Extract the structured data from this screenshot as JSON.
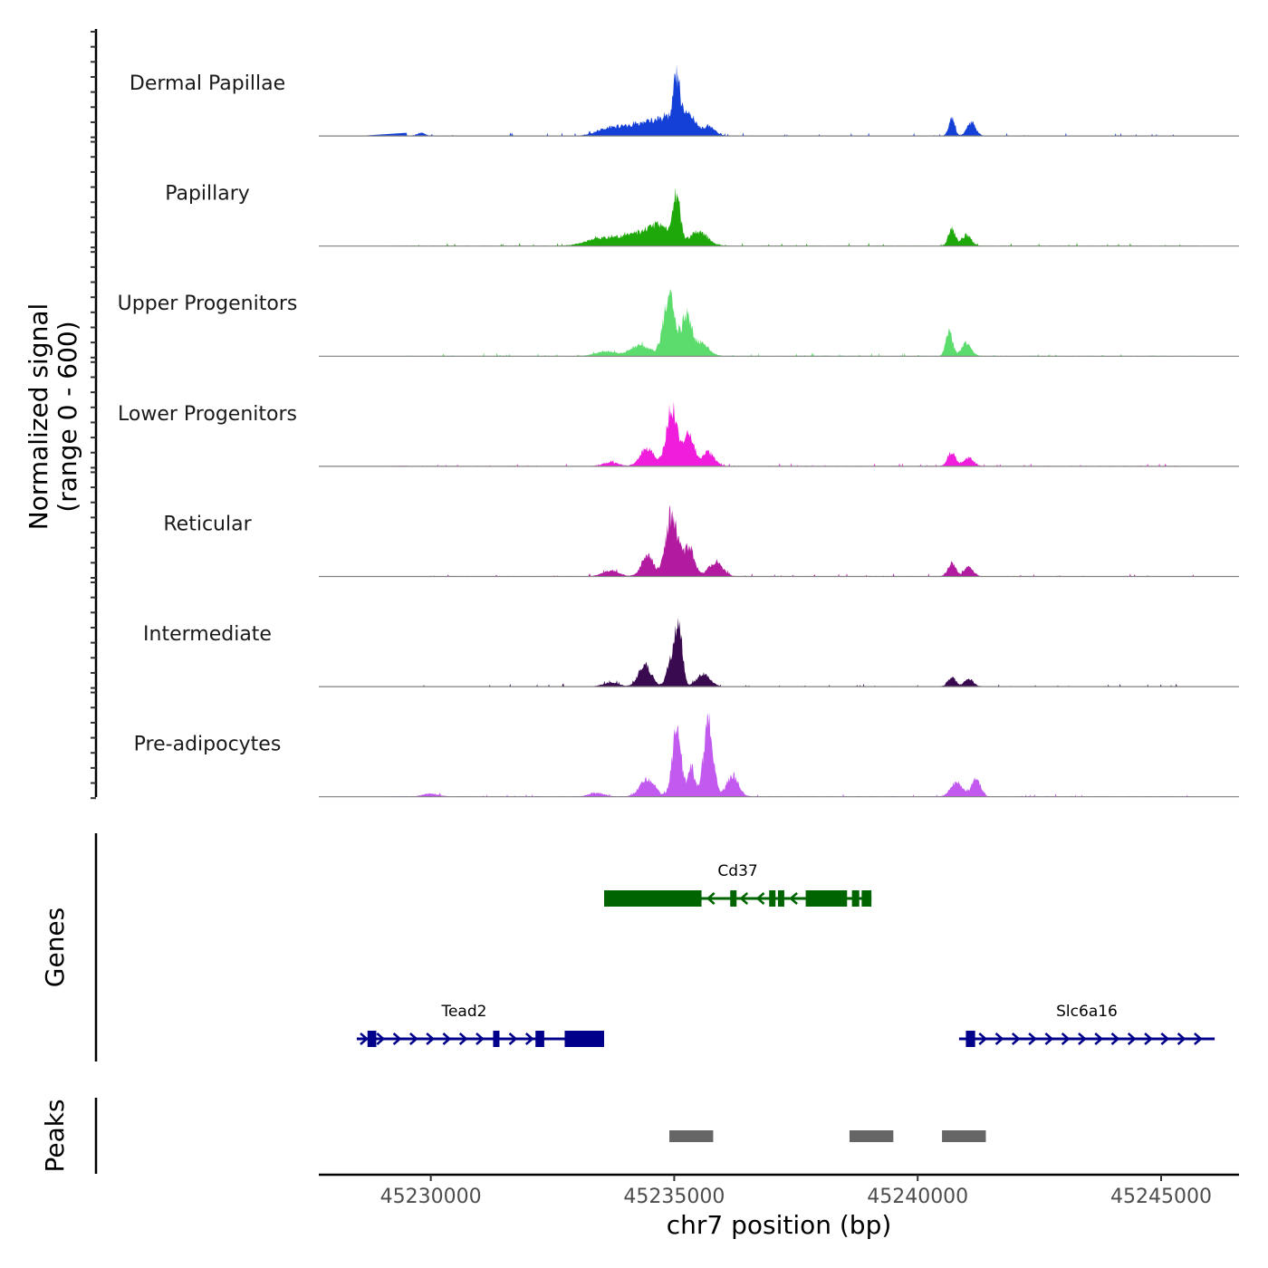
{
  "chart_data": {
    "type": "area",
    "title": "",
    "xlabel": "chr7 position (bp)",
    "ylabel_line1": "Normalized signal",
    "ylabel_line2": "(range 0 - 600)",
    "ylim": [
      0,
      600
    ],
    "xlim": [
      45227700,
      45246600
    ],
    "x_ticks": [
      45230000,
      45235000,
      45240000,
      45245000
    ],
    "x_tick_labels": [
      "45230000",
      "45235000",
      "45240000",
      "45245000"
    ],
    "series": [
      {
        "name": "Dermal Papillae",
        "color": "#1440d8",
        "peaks": [
          [
            45229800,
            30,
            80
          ],
          [
            45233600,
            60,
            220
          ],
          [
            45234000,
            80,
            250
          ],
          [
            45234500,
            130,
            250
          ],
          [
            45234900,
            140,
            200
          ],
          [
            45235050,
            480,
            70
          ],
          [
            45235300,
            220,
            130
          ],
          [
            45235700,
            100,
            130
          ],
          [
            45240700,
            190,
            60
          ],
          [
            45241100,
            130,
            90
          ]
        ]
      },
      {
        "name": "Papillary",
        "color": "#1fa80a",
        "peaks": [
          [
            45233500,
            80,
            300
          ],
          [
            45234200,
            110,
            300
          ],
          [
            45234700,
            200,
            220
          ],
          [
            45235050,
            490,
            75
          ],
          [
            45235500,
            150,
            180
          ],
          [
            45240700,
            180,
            70
          ],
          [
            45241000,
            110,
            100
          ]
        ]
      },
      {
        "name": "Upper Progenitors",
        "color": "#5cdc6c",
        "peaks": [
          [
            45233600,
            50,
            200
          ],
          [
            45234300,
            110,
            200
          ],
          [
            45234900,
            600,
            120
          ],
          [
            45235250,
            400,
            100
          ],
          [
            45235550,
            140,
            150
          ],
          [
            45240650,
            250,
            70
          ],
          [
            45241000,
            130,
            100
          ]
        ]
      },
      {
        "name": "Lower Progenitors",
        "color": "#f01edc",
        "peaks": [
          [
            45233700,
            40,
            150
          ],
          [
            45234450,
            200,
            140
          ],
          [
            45234950,
            600,
            110
          ],
          [
            45235300,
            350,
            110
          ],
          [
            45235700,
            150,
            120
          ],
          [
            45240700,
            150,
            80
          ],
          [
            45241050,
            90,
            100
          ]
        ]
      },
      {
        "name": "Reticular",
        "color": "#b21aa0",
        "peaks": [
          [
            45233700,
            60,
            160
          ],
          [
            45234450,
            220,
            120
          ],
          [
            45234950,
            660,
            120
          ],
          [
            45235300,
            300,
            110
          ],
          [
            45235850,
            150,
            140
          ],
          [
            45240700,
            140,
            80
          ],
          [
            45241050,
            100,
            90
          ]
        ]
      },
      {
        "name": "Intermediate",
        "color": "#3a0a50",
        "peaks": [
          [
            45233700,
            40,
            150
          ],
          [
            45234400,
            220,
            130
          ],
          [
            45234950,
            300,
            90
          ],
          [
            45235100,
            620,
            70
          ],
          [
            45235600,
            130,
            140
          ],
          [
            45240700,
            100,
            80
          ],
          [
            45241050,
            80,
            90
          ]
        ]
      },
      {
        "name": "Pre-adipocytes",
        "color": "#c25af0",
        "peaks": [
          [
            45230000,
            30,
            150
          ],
          [
            45233400,
            40,
            150
          ],
          [
            45234450,
            190,
            150
          ],
          [
            45235050,
            740,
            90
          ],
          [
            45235350,
            300,
            70
          ],
          [
            45235700,
            780,
            100
          ],
          [
            45236200,
            220,
            120
          ],
          [
            45240800,
            150,
            120
          ],
          [
            45241200,
            190,
            90
          ]
        ]
      }
    ],
    "genes": [
      {
        "name": "Cd37",
        "strand": "-",
        "start": 45233560,
        "end": 45239050,
        "color": "#006400",
        "exons": [
          [
            45233560,
            45235560
          ],
          [
            45236150,
            45236260
          ],
          [
            45236950,
            45237060
          ],
          [
            45237130,
            45237240
          ],
          [
            45237700,
            45238550
          ],
          [
            45238650,
            45238800
          ],
          [
            45238850,
            45239050
          ]
        ]
      },
      {
        "name": "Tead2",
        "strand": "+",
        "start": 45228480,
        "end": 45233560,
        "color": "#00008b",
        "exons": [
          [
            45228700,
            45228880
          ],
          [
            45231280,
            45231400
          ],
          [
            45232150,
            45232330
          ],
          [
            45232750,
            45233560
          ]
        ]
      },
      {
        "name": "Slc6a16",
        "strand": "+",
        "start": 45240850,
        "end": 45246100,
        "color": "#00008b",
        "exons": [
          [
            45240990,
            45241180
          ]
        ]
      }
    ],
    "peaks": [
      [
        45234900,
        45235800
      ],
      [
        45238600,
        45239500
      ],
      [
        45240500,
        45241400
      ]
    ],
    "peak_color": "#666666",
    "side_labels": [
      "Genes",
      "Peaks"
    ]
  }
}
